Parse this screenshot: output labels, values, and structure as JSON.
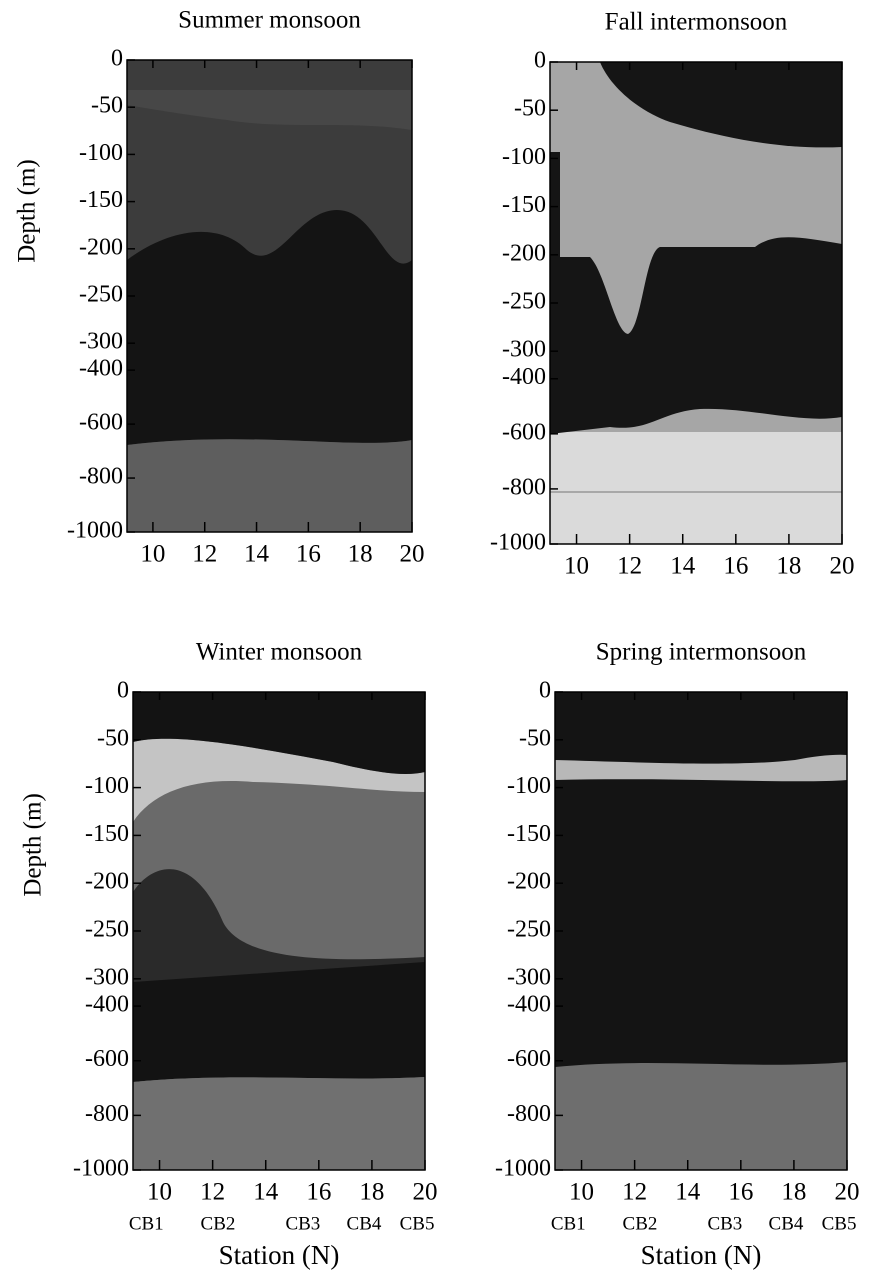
{
  "chart_data": [
    {
      "type": "contour",
      "title": "Summer monsoon",
      "ylabel": "Depth (m)",
      "xlim": [
        9,
        20
      ],
      "xticks": [
        10,
        12,
        14,
        16,
        18,
        20
      ],
      "ylim": [
        0,
        -1000
      ],
      "yticks": [
        0,
        -50,
        -100,
        -150,
        -200,
        -250,
        -300,
        -400,
        -600,
        -800,
        -1000
      ],
      "ybreak": -300
    },
    {
      "type": "contour",
      "title": "Fall intermonsoon",
      "xlim": [
        9,
        20
      ],
      "xticks": [
        10,
        12,
        14,
        16,
        18,
        20
      ],
      "ylim": [
        0,
        -1000
      ],
      "yticks": [
        0,
        -50,
        -100,
        -150,
        -200,
        -250,
        -300,
        -400,
        -600,
        -800,
        -1000
      ],
      "ybreak": -300
    },
    {
      "type": "contour",
      "title": "Winter monsoon",
      "ylabel": "Depth (m)",
      "xlabel": "Station (N)",
      "xlim": [
        9,
        20
      ],
      "xticks": [
        10,
        12,
        14,
        16,
        18,
        20
      ],
      "ylim": [
        0,
        -1000
      ],
      "yticks": [
        0,
        -50,
        -100,
        -150,
        -200,
        -250,
        -300,
        -400,
        -600,
        -800,
        -1000
      ],
      "ybreak": -300,
      "stations": [
        {
          "label": "CB1",
          "x": 9.5
        },
        {
          "label": "CB2",
          "x": 12.2
        },
        {
          "label": "CB3",
          "x": 15.4
        },
        {
          "label": "CB4",
          "x": 17.7
        },
        {
          "label": "CB5",
          "x": 19.7
        }
      ]
    },
    {
      "type": "contour",
      "title": "Spring intermonsoon",
      "xlabel": "Station (N)",
      "xlim": [
        9,
        20
      ],
      "xticks": [
        10,
        12,
        14,
        16,
        18,
        20
      ],
      "ylim": [
        0,
        -1000
      ],
      "yticks": [
        0,
        -50,
        -100,
        -150,
        -200,
        -250,
        -300,
        -400,
        -600,
        -800,
        -1000
      ],
      "ybreak": -300,
      "stations": [
        {
          "label": "CB1",
          "x": 9.5
        },
        {
          "label": "CB2",
          "x": 12.2
        },
        {
          "label": "CB3",
          "x": 15.4
        },
        {
          "label": "CB4",
          "x": 17.7
        },
        {
          "label": "CB5",
          "x": 19.7
        }
      ]
    }
  ]
}
